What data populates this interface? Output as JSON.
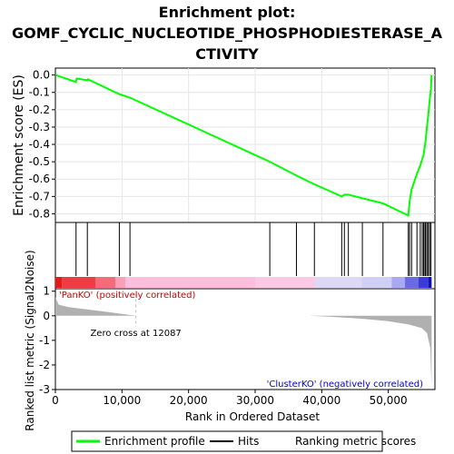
{
  "chart_data": {
    "type": "line",
    "title_lines": [
      "Enrichment plot:",
      "GOMF_CYCLIC_NUCLEOTIDE_PHOSPHODIESTERASE_A",
      "CTIVITY"
    ],
    "top_panel": {
      "ylabel": "Enrichment score (ES)",
      "ylim": [
        -0.85,
        0.04
      ],
      "yticks": [
        0.0,
        -0.1,
        -0.2,
        -0.3,
        -0.4,
        -0.5,
        -0.6,
        -0.7,
        -0.8
      ],
      "ytick_labels": [
        "0.0",
        "-0.1",
        "-0.2",
        "-0.3",
        "-0.4",
        "-0.5",
        "-0.6",
        "-0.7",
        "-0.8"
      ],
      "series": [
        {
          "name": "Enrichment profile",
          "color": "#00ff00",
          "x": [
            0,
            3100,
            3200,
            4800,
            4900,
            9600,
            11200,
            32200,
            36200,
            38900,
            43000,
            43400,
            44000,
            46100,
            49200,
            53000,
            53200,
            53500,
            54300,
            54800,
            55300,
            55600,
            55800,
            56000,
            56200,
            56400,
            56500
          ],
          "y": [
            0.0,
            -0.04,
            -0.02,
            -0.03,
            -0.025,
            -0.11,
            -0.13,
            -0.5,
            -0.58,
            -0.63,
            -0.7,
            -0.69,
            -0.69,
            -0.71,
            -0.74,
            -0.81,
            -0.73,
            -0.66,
            -0.57,
            -0.52,
            -0.46,
            -0.38,
            -0.3,
            -0.23,
            -0.15,
            -0.08,
            0.0
          ]
        }
      ]
    },
    "hits_panel": {
      "hit_positions": [
        3100,
        4800,
        9600,
        11200,
        32200,
        36200,
        38900,
        43000,
        43400,
        44000,
        46100,
        49200,
        53000,
        53200,
        53500,
        54300,
        54800,
        55100,
        55300,
        55500,
        55600,
        55800,
        56000,
        56200,
        56400
      ]
    },
    "bottom_panel": {
      "ylabel": "Ranked list metric (Signal2Noise)",
      "xlabel": "Rank in Ordered Dataset",
      "xlim": [
        0,
        57000
      ],
      "ylim": [
        -3,
        1.1
      ],
      "xticks": [
        0,
        10000,
        20000,
        30000,
        40000,
        50000
      ],
      "xtick_labels": [
        "0",
        "10,000",
        "20,000",
        "30,000",
        "40,000",
        "50,000"
      ],
      "yticks": [
        1,
        0,
        -1,
        -2,
        -3
      ],
      "ytick_labels": [
        "1",
        "0",
        "-1",
        "-2",
        "-3"
      ],
      "metric_profile": {
        "x": [
          0,
          500,
          2000,
          5000,
          8000,
          12087,
          20000,
          30000,
          38000,
          42000,
          46000,
          50000,
          53000,
          55000,
          55800,
          56300,
          56500
        ],
        "y": [
          0.75,
          0.45,
          0.35,
          0.25,
          0.15,
          0.0,
          0.0,
          0.0,
          0.0,
          -0.05,
          -0.12,
          -0.22,
          -0.35,
          -0.5,
          -0.7,
          -1.3,
          -2.9
        ]
      },
      "zero_cross_rank": 12087,
      "zero_cross_label": "Zero cross at 12087",
      "pos_label": "'PanKO' (positively correlated)",
      "neg_label": "'ClusterKO' (negatively correlated)"
    },
    "legend": [
      {
        "label": "Enrichment profile",
        "color": "#00ff00"
      },
      {
        "label": "Hits",
        "color": "#000000"
      },
      {
        "label": "Ranking metric scores",
        "color": "#c0c0c0"
      }
    ],
    "colors": {
      "es_line": "#00ff00",
      "hit": "#000000",
      "metric_fill": "#b0b0b0",
      "pos_label": "#cc0000",
      "neg_label": "#0000cc",
      "zero_cross_line": "#c0c0c0"
    }
  }
}
